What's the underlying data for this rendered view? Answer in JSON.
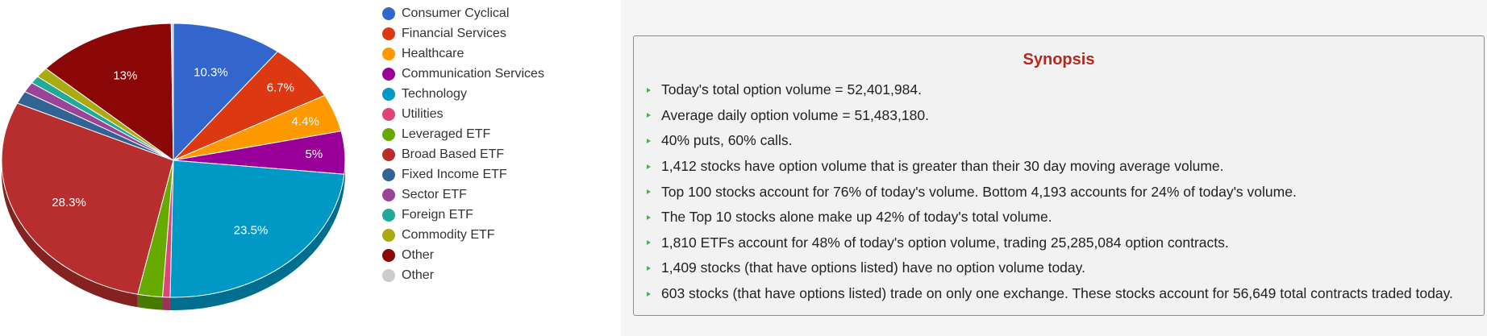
{
  "chart_data": {
    "type": "pie",
    "title": "",
    "slices": [
      {
        "label": "Consumer Cyclical",
        "value": 10.3,
        "color": "#3366cc",
        "display": "10.3%"
      },
      {
        "label": "Financial Services",
        "value": 6.7,
        "color": "#dc3912",
        "display": "6.7%"
      },
      {
        "label": "Healthcare",
        "value": 4.4,
        "color": "#ff9900",
        "display": "4.4%"
      },
      {
        "label": "Communication Services",
        "value": 5.0,
        "color": "#990099",
        "display": "5%"
      },
      {
        "label": "Technology",
        "value": 23.5,
        "color": "#0099c6",
        "display": "23.5%"
      },
      {
        "label": "Utilities",
        "value": 0.7,
        "color": "#dd4477",
        "display": ""
      },
      {
        "label": "Leveraged ETF",
        "value": 2.3,
        "color": "#66aa00",
        "display": ""
      },
      {
        "label": "Broad Based ETF",
        "value": 28.3,
        "color": "#b82e2e",
        "display": "28.3%"
      },
      {
        "label": "Fixed Income ETF",
        "value": 1.5,
        "color": "#316395",
        "display": ""
      },
      {
        "label": "Sector ETF",
        "value": 1.2,
        "color": "#994499",
        "display": ""
      },
      {
        "label": "Foreign ETF",
        "value": 0.9,
        "color": "#22aa99",
        "display": ""
      },
      {
        "label": "Commodity ETF",
        "value": 1.2,
        "color": "#aaaa11",
        "display": ""
      },
      {
        "label": "Other",
        "value": 13.0,
        "color": "#8b0707",
        "display": "13%"
      },
      {
        "label": "Other",
        "value": 0.2,
        "color": "#cccccc",
        "display": ""
      }
    ],
    "legend_position": "right"
  },
  "synopsis": {
    "title": "Synopsis",
    "items": [
      "Today's total option volume = 52,401,984.",
      "Average daily option volume = 51,483,180.",
      "40% puts, 60% calls.",
      "1,412 stocks have option volume that is greater than their 30 day moving average volume.",
      "Top 100 stocks account for 76% of today's volume. Bottom 4,193 accounts for 24% of today's volume.",
      "The Top 10 stocks alone make up 42% of today's total volume.",
      "1,810 ETFs account for 48% of today's option volume, trading 25,285,084 option contracts.",
      "1,409 stocks (that have options listed) have no option volume today.",
      "603 stocks (that have options listed) trade on only one exchange. These stocks account for 56,649 total contracts traded today."
    ]
  }
}
